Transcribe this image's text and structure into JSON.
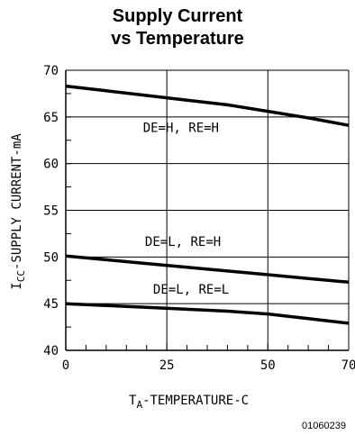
{
  "chart_data": {
    "type": "line",
    "title_line_1": "Supply Current",
    "title_line_2": "vs Temperature",
    "xlabel": {
      "main": "T",
      "sub": "A",
      "rest": "-TEMPERATURE-C"
    },
    "ylabel": {
      "main": "I",
      "sub": "CC",
      "rest": "-SUPPLY CURRENT-mA"
    },
    "xlim": [
      0,
      70
    ],
    "ylim": [
      40,
      70
    ],
    "x_ticks": [
      0,
      25,
      50,
      70
    ],
    "x_tick_labels": [
      "0",
      "25",
      "50",
      "70"
    ],
    "y_ticks": [
      40,
      45,
      50,
      55,
      60,
      65,
      70
    ],
    "y_tick_labels": [
      "40",
      "45",
      "50",
      "55",
      "60",
      "65",
      "70"
    ],
    "grid": true,
    "series": [
      {
        "name": "DE=H, RE=H",
        "x": [
          0,
          10,
          20,
          30,
          40,
          50,
          60,
          70
        ],
        "y": [
          68.3,
          67.8,
          67.3,
          66.8,
          66.3,
          65.6,
          64.9,
          64.1
        ]
      },
      {
        "name": "DE=L, RE=H",
        "x": [
          0,
          10,
          20,
          30,
          40,
          50,
          60,
          70
        ],
        "y": [
          50.1,
          49.7,
          49.3,
          48.9,
          48.5,
          48.1,
          47.7,
          47.3
        ]
      },
      {
        "name": "DE=L, RE=L",
        "x": [
          0,
          10,
          20,
          30,
          40,
          50,
          60,
          70
        ],
        "y": [
          45.0,
          44.8,
          44.6,
          44.4,
          44.2,
          43.9,
          43.4,
          42.9
        ]
      }
    ],
    "figure_id": "01060239"
  }
}
